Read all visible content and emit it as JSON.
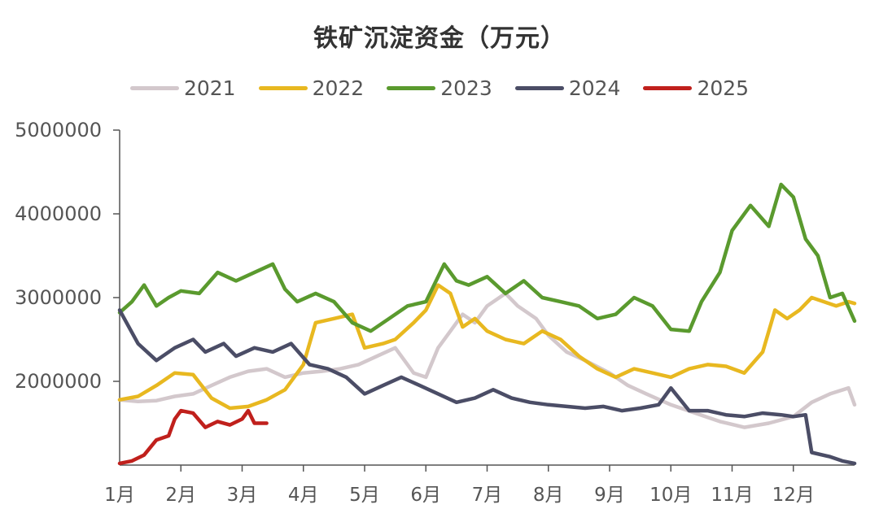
{
  "chart_data": {
    "type": "line",
    "title": "铁矿沉淀资金（万元）",
    "xlabel": "",
    "ylabel": "",
    "ylim": [
      1000000,
      5000000
    ],
    "yticks": [
      "5000000",
      "4000000",
      "3000000",
      "2000000"
    ],
    "x_tick_labels": [
      "1月",
      "2月",
      "3月",
      "4月",
      "5月",
      "6月",
      "7月",
      "8月",
      "9月",
      "10月",
      "11月",
      "12月"
    ],
    "legend_position": "top-center",
    "x_unit": "month position (1.0 = start of Jan, 13.0 = end of Dec)",
    "series": [
      {
        "name": "2021",
        "color": "#d3c8cc",
        "points": [
          [
            1.0,
            1.78
          ],
          [
            1.3,
            1.76
          ],
          [
            1.6,
            1.77
          ],
          [
            1.9,
            1.82
          ],
          [
            2.2,
            1.85
          ],
          [
            2.5,
            1.95
          ],
          [
            2.8,
            2.05
          ],
          [
            3.1,
            2.12
          ],
          [
            3.4,
            2.15
          ],
          [
            3.7,
            2.05
          ],
          [
            4.0,
            2.1
          ],
          [
            4.3,
            2.12
          ],
          [
            4.6,
            2.15
          ],
          [
            4.9,
            2.2
          ],
          [
            5.2,
            2.3
          ],
          [
            5.5,
            2.4
          ],
          [
            5.8,
            2.1
          ],
          [
            6.0,
            2.05
          ],
          [
            6.2,
            2.4
          ],
          [
            6.4,
            2.6
          ],
          [
            6.6,
            2.8
          ],
          [
            6.8,
            2.7
          ],
          [
            7.0,
            2.9
          ],
          [
            7.3,
            3.05
          ],
          [
            7.5,
            2.9
          ],
          [
            7.8,
            2.75
          ],
          [
            8.0,
            2.55
          ],
          [
            8.3,
            2.35
          ],
          [
            8.6,
            2.25
          ],
          [
            9.0,
            2.1
          ],
          [
            9.3,
            1.95
          ],
          [
            9.6,
            1.85
          ],
          [
            10.0,
            1.72
          ],
          [
            10.4,
            1.62
          ],
          [
            10.8,
            1.52
          ],
          [
            11.2,
            1.45
          ],
          [
            11.6,
            1.5
          ],
          [
            12.0,
            1.58
          ],
          [
            12.3,
            1.75
          ],
          [
            12.6,
            1.85
          ],
          [
            12.9,
            1.92
          ],
          [
            13.0,
            1.72
          ]
        ]
      },
      {
        "name": "2022",
        "color": "#e8b820",
        "points": [
          [
            1.0,
            1.78
          ],
          [
            1.3,
            1.82
          ],
          [
            1.6,
            1.95
          ],
          [
            1.9,
            2.1
          ],
          [
            2.2,
            2.08
          ],
          [
            2.5,
            1.8
          ],
          [
            2.8,
            1.68
          ],
          [
            3.1,
            1.7
          ],
          [
            3.4,
            1.78
          ],
          [
            3.7,
            1.9
          ],
          [
            4.0,
            2.2
          ],
          [
            4.2,
            2.7
          ],
          [
            4.5,
            2.75
          ],
          [
            4.8,
            2.8
          ],
          [
            5.0,
            2.4
          ],
          [
            5.3,
            2.45
          ],
          [
            5.5,
            2.5
          ],
          [
            5.8,
            2.7
          ],
          [
            6.0,
            2.85
          ],
          [
            6.2,
            3.15
          ],
          [
            6.4,
            3.05
          ],
          [
            6.6,
            2.65
          ],
          [
            6.8,
            2.75
          ],
          [
            7.0,
            2.6
          ],
          [
            7.3,
            2.5
          ],
          [
            7.6,
            2.45
          ],
          [
            7.9,
            2.6
          ],
          [
            8.2,
            2.5
          ],
          [
            8.5,
            2.3
          ],
          [
            8.8,
            2.15
          ],
          [
            9.1,
            2.05
          ],
          [
            9.4,
            2.15
          ],
          [
            9.7,
            2.1
          ],
          [
            10.0,
            2.05
          ],
          [
            10.3,
            2.15
          ],
          [
            10.6,
            2.2
          ],
          [
            10.9,
            2.18
          ],
          [
            11.2,
            2.1
          ],
          [
            11.5,
            2.35
          ],
          [
            11.7,
            2.85
          ],
          [
            11.9,
            2.75
          ],
          [
            12.1,
            2.85
          ],
          [
            12.3,
            3.0
          ],
          [
            12.5,
            2.95
          ],
          [
            12.7,
            2.9
          ],
          [
            12.9,
            2.95
          ],
          [
            13.0,
            2.93
          ]
        ]
      },
      {
        "name": "2023",
        "color": "#5a9a2e",
        "points": [
          [
            1.0,
            2.82
          ],
          [
            1.2,
            2.95
          ],
          [
            1.4,
            3.15
          ],
          [
            1.6,
            2.9
          ],
          [
            1.8,
            3.0
          ],
          [
            2.0,
            3.08
          ],
          [
            2.3,
            3.05
          ],
          [
            2.6,
            3.3
          ],
          [
            2.9,
            3.2
          ],
          [
            3.2,
            3.3
          ],
          [
            3.5,
            3.4
          ],
          [
            3.7,
            3.1
          ],
          [
            3.9,
            2.95
          ],
          [
            4.2,
            3.05
          ],
          [
            4.5,
            2.95
          ],
          [
            4.8,
            2.7
          ],
          [
            5.1,
            2.6
          ],
          [
            5.4,
            2.75
          ],
          [
            5.7,
            2.9
          ],
          [
            6.0,
            2.95
          ],
          [
            6.3,
            3.4
          ],
          [
            6.5,
            3.2
          ],
          [
            6.7,
            3.15
          ],
          [
            7.0,
            3.25
          ],
          [
            7.3,
            3.05
          ],
          [
            7.6,
            3.2
          ],
          [
            7.9,
            3.0
          ],
          [
            8.2,
            2.95
          ],
          [
            8.5,
            2.9
          ],
          [
            8.8,
            2.75
          ],
          [
            9.1,
            2.8
          ],
          [
            9.4,
            3.0
          ],
          [
            9.7,
            2.9
          ],
          [
            10.0,
            2.62
          ],
          [
            10.3,
            2.6
          ],
          [
            10.5,
            2.95
          ],
          [
            10.8,
            3.3
          ],
          [
            11.0,
            3.8
          ],
          [
            11.3,
            4.1
          ],
          [
            11.6,
            3.85
          ],
          [
            11.8,
            4.35
          ],
          [
            12.0,
            4.2
          ],
          [
            12.2,
            3.7
          ],
          [
            12.4,
            3.5
          ],
          [
            12.6,
            3.0
          ],
          [
            12.8,
            3.05
          ],
          [
            13.0,
            2.72
          ]
        ]
      },
      {
        "name": "2024",
        "color": "#4b4d66",
        "points": [
          [
            1.0,
            2.85
          ],
          [
            1.3,
            2.45
          ],
          [
            1.6,
            2.25
          ],
          [
            1.9,
            2.4
          ],
          [
            2.2,
            2.5
          ],
          [
            2.4,
            2.35
          ],
          [
            2.7,
            2.45
          ],
          [
            2.9,
            2.3
          ],
          [
            3.2,
            2.4
          ],
          [
            3.5,
            2.35
          ],
          [
            3.8,
            2.45
          ],
          [
            4.1,
            2.2
          ],
          [
            4.4,
            2.15
          ],
          [
            4.7,
            2.05
          ],
          [
            5.0,
            1.85
          ],
          [
            5.3,
            1.95
          ],
          [
            5.6,
            2.05
          ],
          [
            5.9,
            1.95
          ],
          [
            6.2,
            1.85
          ],
          [
            6.5,
            1.75
          ],
          [
            6.8,
            1.8
          ],
          [
            7.1,
            1.9
          ],
          [
            7.4,
            1.8
          ],
          [
            7.7,
            1.75
          ],
          [
            8.0,
            1.72
          ],
          [
            8.3,
            1.7
          ],
          [
            8.6,
            1.68
          ],
          [
            8.9,
            1.7
          ],
          [
            9.2,
            1.65
          ],
          [
            9.5,
            1.68
          ],
          [
            9.8,
            1.72
          ],
          [
            10.0,
            1.92
          ],
          [
            10.3,
            1.65
          ],
          [
            10.6,
            1.65
          ],
          [
            10.9,
            1.6
          ],
          [
            11.2,
            1.58
          ],
          [
            11.5,
            1.62
          ],
          [
            11.8,
            1.6
          ],
          [
            12.0,
            1.58
          ],
          [
            12.2,
            1.6
          ],
          [
            12.3,
            1.15
          ],
          [
            12.6,
            1.1
          ],
          [
            12.8,
            1.05
          ],
          [
            13.0,
            1.02
          ]
        ]
      },
      {
        "name": "2025",
        "color": "#c0201c",
        "points": [
          [
            1.0,
            1.02
          ],
          [
            1.2,
            1.05
          ],
          [
            1.4,
            1.12
          ],
          [
            1.6,
            1.3
          ],
          [
            1.8,
            1.35
          ],
          [
            1.9,
            1.55
          ],
          [
            2.0,
            1.65
          ],
          [
            2.2,
            1.62
          ],
          [
            2.4,
            1.45
          ],
          [
            2.6,
            1.52
          ],
          [
            2.8,
            1.48
          ],
          [
            3.0,
            1.55
          ],
          [
            3.1,
            1.65
          ],
          [
            3.2,
            1.5
          ],
          [
            3.4,
            1.5
          ]
        ]
      }
    ]
  }
}
